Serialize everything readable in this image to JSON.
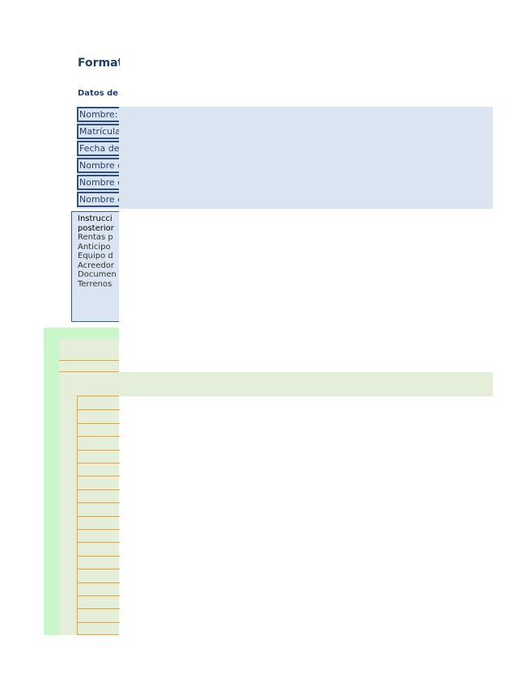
{
  "header": {
    "title": "Format",
    "section_label": "Datos de"
  },
  "fields": [
    {
      "label": "Nombre:"
    },
    {
      "label": "Matrícula"
    },
    {
      "label": "Fecha de"
    },
    {
      "label": "Nombre d"
    },
    {
      "label": "Nombre d"
    },
    {
      "label": "Nombre d"
    }
  ],
  "instructions": {
    "heading_line1": "Instrucci",
    "heading_line2": "posterior",
    "items": [
      "Rentas p",
      "Anticipo",
      "Equipo d",
      "Acreedor",
      "Documen",
      "Terrenos"
    ]
  },
  "colors": {
    "title": "#1f3f6e",
    "field_band": "#dbe5f1",
    "field_border": "#2f4f7f",
    "green_band": "#c9f7c9",
    "green_inner": "#e5eed8",
    "orange_grid": "#f0a030"
  }
}
